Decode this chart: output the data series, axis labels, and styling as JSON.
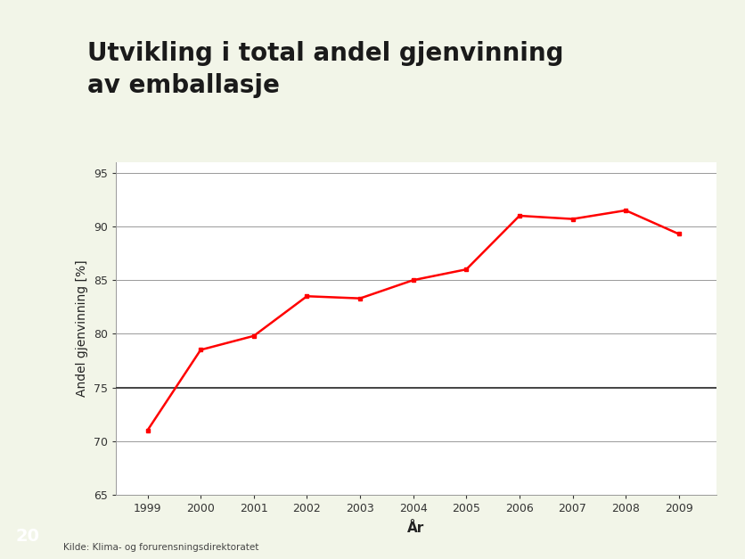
{
  "title": "Utvikling i total andel gjenvinning\nav emballasje",
  "xlabel": "År",
  "ylabel": "Andel gjenvinning [%]",
  "source": "Kilde: Klima- og forurensningsdirektoratet",
  "slide_number": "20",
  "years": [
    1999,
    2000,
    2001,
    2002,
    2003,
    2004,
    2005,
    2006,
    2007,
    2008,
    2009
  ],
  "values": [
    71.0,
    78.5,
    79.8,
    83.5,
    83.3,
    85.0,
    86.0,
    91.0,
    90.7,
    91.5,
    89.3
  ],
  "line_color": "#FF0000",
  "line_width": 1.8,
  "marker": "s",
  "marker_size": 3.5,
  "ylim": [
    65,
    96
  ],
  "yticks": [
    65,
    70,
    75,
    80,
    85,
    90,
    95
  ],
  "ytick_labels": [
    "65",
    "70",
    "75",
    "80",
    "85",
    "90",
    "95"
  ],
  "bg_color": "#FFFFFF",
  "outer_bg": "#F2F5E8",
  "green_bar_color": "#9DC060",
  "title_fontsize": 20,
  "axis_label_fontsize": 10,
  "tick_fontsize": 9,
  "source_fontsize": 7.5,
  "slide_num_fontsize": 14
}
